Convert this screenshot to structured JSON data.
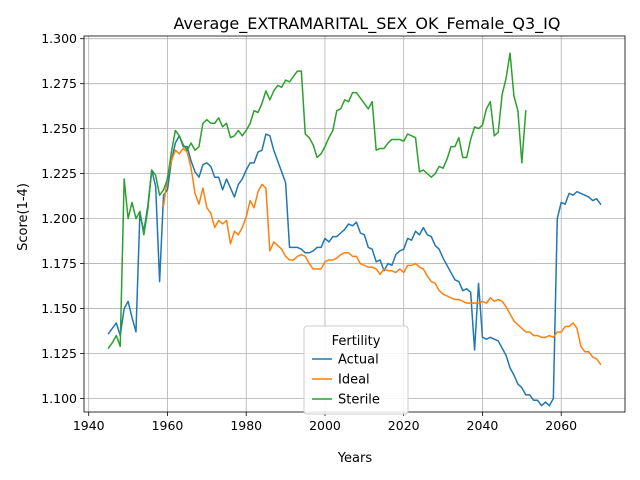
{
  "chart_data": {
    "type": "line",
    "title": "Average_EXTRAMARITAL_SEX_OK_Female_Q3_IQ",
    "xlabel": "Years",
    "ylabel": "Score(1-4)",
    "xlim": [
      1938.8,
      2076.2
    ],
    "ylim": [
      1.0925,
      1.3015
    ],
    "xticks": [
      1940,
      1960,
      1980,
      2000,
      2020,
      2040,
      2060
    ],
    "yticks": [
      1.1,
      1.125,
      1.15,
      1.175,
      1.2,
      1.225,
      1.25,
      1.275,
      1.3
    ],
    "ytick_labels": [
      "1.100",
      "1.125",
      "1.150",
      "1.175",
      "1.200",
      "1.225",
      "1.250",
      "1.275",
      "1.300"
    ],
    "grid": true,
    "legend": {
      "title": "Fertility",
      "placement": "lower-center"
    },
    "series": [
      {
        "name": "Actual",
        "color": "#1f77b4",
        "x": [
          1945,
          1946,
          1947,
          1948,
          1949,
          1950,
          1951,
          1952,
          1953,
          1954,
          1955,
          1956,
          1957,
          1958,
          1959,
          1960,
          1961,
          1962,
          1963,
          1964,
          1965,
          1966,
          1967,
          1968,
          1969,
          1970,
          1971,
          1972,
          1973,
          1974,
          1975,
          1976,
          1977,
          1978,
          1979,
          1980,
          1981,
          1982,
          1983,
          1984,
          1985,
          1986,
          1987,
          1988,
          1989,
          1990,
          1991,
          1992,
          1993,
          1994,
          1995,
          1996,
          1997,
          1998,
          1999,
          2000,
          2001,
          2002,
          2003,
          2004,
          2005,
          2006,
          2007,
          2008,
          2009,
          2010,
          2011,
          2012,
          2013,
          2014,
          2015,
          2016,
          2017,
          2018,
          2019,
          2020,
          2021,
          2022,
          2023,
          2024,
          2025,
          2026,
          2027,
          2028,
          2029,
          2030,
          2031,
          2032,
          2033,
          2034,
          2035,
          2036,
          2037,
          2038,
          2039,
          2040,
          2041,
          2042,
          2043,
          2044,
          2045,
          2046,
          2047,
          2048,
          2049,
          2050,
          2051,
          2052,
          2053,
          2054,
          2055,
          2056,
          2057,
          2058,
          2059,
          2060,
          2061,
          2062,
          2063,
          2064,
          2065,
          2066,
          2067,
          2068,
          2069,
          2070
        ],
        "values": [
          1.136,
          1.139,
          1.142,
          1.135,
          1.15,
          1.154,
          1.145,
          1.137,
          1.203,
          1.193,
          1.207,
          1.227,
          1.218,
          1.165,
          1.213,
          1.216,
          1.232,
          1.242,
          1.246,
          1.24,
          1.24,
          1.232,
          1.226,
          1.223,
          1.23,
          1.231,
          1.229,
          1.223,
          1.223,
          1.216,
          1.222,
          1.217,
          1.212,
          1.219,
          1.222,
          1.227,
          1.231,
          1.231,
          1.237,
          1.238,
          1.247,
          1.246,
          1.238,
          1.232,
          1.226,
          1.22,
          1.184,
          1.184,
          1.184,
          1.183,
          1.181,
          1.181,
          1.182,
          1.184,
          1.184,
          1.189,
          1.187,
          1.19,
          1.19,
          1.192,
          1.194,
          1.197,
          1.196,
          1.198,
          1.192,
          1.191,
          1.184,
          1.183,
          1.176,
          1.177,
          1.171,
          1.175,
          1.174,
          1.18,
          1.182,
          1.183,
          1.189,
          1.188,
          1.193,
          1.191,
          1.195,
          1.191,
          1.19,
          1.185,
          1.183,
          1.178,
          1.174,
          1.17,
          1.166,
          1.165,
          1.16,
          1.161,
          1.159,
          1.127,
          1.164,
          1.134,
          1.133,
          1.134,
          1.133,
          1.132,
          1.128,
          1.124,
          1.117,
          1.113,
          1.108,
          1.106,
          1.102,
          1.102,
          1.099,
          1.099,
          1.096,
          1.098,
          1.096,
          1.1,
          1.2,
          1.209,
          1.208,
          1.214,
          1.213,
          1.215,
          1.214,
          1.213,
          1.212,
          1.21,
          1.211,
          1.208
        ]
      },
      {
        "name": "Ideal",
        "color": "#ff7f0e",
        "x": [
          1959,
          1960,
          1961,
          1962,
          1963,
          1964,
          1965,
          1966,
          1967,
          1968,
          1969,
          1970,
          1971,
          1972,
          1973,
          1974,
          1975,
          1976,
          1977,
          1978,
          1979,
          1980,
          1981,
          1982,
          1983,
          1984,
          1985,
          1986,
          1987,
          1988,
          1989,
          1990,
          1991,
          1992,
          1993,
          1994,
          1995,
          1996,
          1997,
          1998,
          1999,
          2000,
          2001,
          2002,
          2003,
          2004,
          2005,
          2006,
          2007,
          2008,
          2009,
          2010,
          2011,
          2012,
          2013,
          2014,
          2015,
          2016,
          2017,
          2018,
          2019,
          2020,
          2021,
          2022,
          2023,
          2024,
          2025,
          2026,
          2027,
          2028,
          2029,
          2030,
          2031,
          2032,
          2033,
          2034,
          2035,
          2036,
          2037,
          2038,
          2039,
          2040,
          2041,
          2042,
          2043,
          2044,
          2045,
          2046,
          2047,
          2048,
          2049,
          2050,
          2051,
          2052,
          2053,
          2054,
          2055,
          2056,
          2057,
          2058,
          2059,
          2060,
          2061,
          2062,
          2063,
          2064,
          2065,
          2066,
          2067,
          2068,
          2069,
          2070
        ],
        "values": [
          1.207,
          1.223,
          1.232,
          1.238,
          1.236,
          1.239,
          1.237,
          1.228,
          1.214,
          1.208,
          1.217,
          1.206,
          1.203,
          1.195,
          1.199,
          1.197,
          1.199,
          1.186,
          1.193,
          1.191,
          1.195,
          1.201,
          1.21,
          1.206,
          1.215,
          1.219,
          1.217,
          1.182,
          1.187,
          1.185,
          1.183,
          1.179,
          1.177,
          1.177,
          1.179,
          1.18,
          1.179,
          1.175,
          1.172,
          1.172,
          1.172,
          1.176,
          1.177,
          1.177,
          1.178,
          1.18,
          1.181,
          1.181,
          1.179,
          1.179,
          1.175,
          1.174,
          1.173,
          1.173,
          1.172,
          1.169,
          1.172,
          1.171,
          1.171,
          1.17,
          1.172,
          1.17,
          1.174,
          1.174,
          1.175,
          1.173,
          1.172,
          1.168,
          1.165,
          1.164,
          1.16,
          1.158,
          1.157,
          1.156,
          1.155,
          1.155,
          1.154,
          1.153,
          1.153,
          1.153,
          1.153,
          1.154,
          1.153,
          1.156,
          1.154,
          1.155,
          1.154,
          1.151,
          1.147,
          1.143,
          1.141,
          1.139,
          1.137,
          1.137,
          1.135,
          1.135,
          1.134,
          1.134,
          1.135,
          1.134,
          1.137,
          1.137,
          1.14,
          1.14,
          1.142,
          1.139,
          1.129,
          1.126,
          1.126,
          1.123,
          1.122,
          1.119
        ]
      },
      {
        "name": "Sterile",
        "color": "#2ca02c",
        "x": [
          1945,
          1946,
          1947,
          1948,
          1949,
          1950,
          1951,
          1952,
          1953,
          1954,
          1955,
          1956,
          1957,
          1958,
          1959,
          1960,
          1961,
          1962,
          1963,
          1964,
          1965,
          1966,
          1967,
          1968,
          1969,
          1970,
          1971,
          1972,
          1973,
          1974,
          1975,
          1976,
          1977,
          1978,
          1979,
          1980,
          1981,
          1982,
          1983,
          1984,
          1985,
          1986,
          1987,
          1988,
          1989,
          1990,
          1991,
          1992,
          1993,
          1994,
          1995,
          1996,
          1997,
          1998,
          1999,
          2000,
          2001,
          2002,
          2003,
          2004,
          2005,
          2006,
          2007,
          2008,
          2009,
          2010,
          2011,
          2012,
          2013,
          2014,
          2015,
          2016,
          2017,
          2018,
          2019,
          2020,
          2021,
          2022,
          2023,
          2024,
          2025,
          2026,
          2027,
          2028,
          2029,
          2030,
          2031,
          2032,
          2033,
          2034,
          2035,
          2036,
          2037,
          2038,
          2039,
          2040,
          2041,
          2042,
          2043,
          2044,
          2045,
          2046,
          2047,
          2048,
          2049,
          2050,
          2051
        ],
        "values": [
          1.128,
          1.131,
          1.135,
          1.129,
          1.222,
          1.2,
          1.209,
          1.2,
          1.204,
          1.191,
          1.205,
          1.227,
          1.224,
          1.213,
          1.216,
          1.222,
          1.237,
          1.249,
          1.246,
          1.241,
          1.238,
          1.242,
          1.238,
          1.24,
          1.253,
          1.255,
          1.253,
          1.253,
          1.256,
          1.251,
          1.253,
          1.245,
          1.246,
          1.249,
          1.246,
          1.249,
          1.253,
          1.26,
          1.259,
          1.264,
          1.271,
          1.266,
          1.271,
          1.274,
          1.273,
          1.277,
          1.276,
          1.279,
          1.282,
          1.282,
          1.247,
          1.245,
          1.241,
          1.234,
          1.236,
          1.24,
          1.245,
          1.249,
          1.26,
          1.261,
          1.266,
          1.265,
          1.27,
          1.27,
          1.267,
          1.264,
          1.261,
          1.265,
          1.238,
          1.239,
          1.239,
          1.242,
          1.244,
          1.244,
          1.244,
          1.243,
          1.247,
          1.246,
          1.245,
          1.226,
          1.227,
          1.225,
          1.223,
          1.225,
          1.229,
          1.228,
          1.233,
          1.24,
          1.24,
          1.245,
          1.234,
          1.234,
          1.244,
          1.251,
          1.25,
          1.252,
          1.261,
          1.265,
          1.246,
          1.248,
          1.269,
          1.278,
          1.292,
          1.268,
          1.26,
          1.231,
          1.26
        ]
      }
    ]
  }
}
